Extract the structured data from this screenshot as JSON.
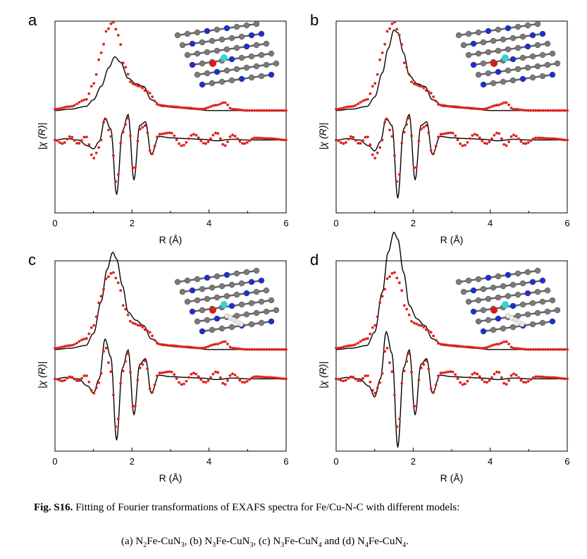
{
  "figure": {
    "caption_bold": "Fig. S16.",
    "caption_text": " Fitting of Fourier transformations of EXAFS spectra for Fe/Cu-N-C with different models:",
    "caption_line2": [
      {
        "t": "(a) N"
      },
      {
        "s": "2"
      },
      {
        "t": "Fe-CuN"
      },
      {
        "s": "3"
      },
      {
        "t": ", (b) N"
      },
      {
        "s": "3"
      },
      {
        "t": "Fe-CuN"
      },
      {
        "s": "3"
      },
      {
        "t": ", (c) N"
      },
      {
        "s": "3"
      },
      {
        "t": "Fe-CuN"
      },
      {
        "s": "4"
      },
      {
        "t": " and (d) N"
      },
      {
        "s": "4"
      },
      {
        "t": "Fe-CuN"
      },
      {
        "s": "4"
      },
      {
        "t": "."
      }
    ]
  },
  "colors": {
    "fit": "#000000",
    "data": "#e0201c",
    "atom_c": "#7a7a7a",
    "atom_n": "#1c2fd6",
    "atom_fe": "#d61c1c",
    "atom_cu": "#33d6d6",
    "atom_h": "#e8e8e8"
  },
  "chart_data": [
    {
      "panel_label": "a",
      "type": "line",
      "xlabel": "R (Å)",
      "ylabel": "|χ (R)|",
      "xlim": [
        0,
        6
      ],
      "xticks": [
        "0",
        "2",
        "4",
        "6"
      ],
      "series": [
        {
          "role": "fit-magnitude",
          "x": [
            0,
            0.4,
            0.8,
            1.0,
            1.2,
            1.4,
            1.55,
            1.7,
            1.9,
            2.1,
            2.3,
            2.5,
            2.8,
            3.2,
            3.6,
            4.0,
            4.4,
            5.0,
            6.0
          ],
          "y": [
            0.02,
            0.03,
            0.05,
            0.1,
            0.2,
            0.34,
            0.42,
            0.38,
            0.26,
            0.22,
            0.2,
            0.1,
            0.05,
            0.04,
            0.03,
            0.02,
            0.02,
            0.02,
            0.02
          ]
        },
        {
          "role": "data-magnitude",
          "x": [
            0,
            0.4,
            0.8,
            1.0,
            1.2,
            1.35,
            1.5,
            1.65,
            1.8,
            2.0,
            2.2,
            2.4,
            2.7,
            3.0,
            3.4,
            3.8,
            4.2,
            4.4,
            4.6,
            5.0,
            6.0
          ],
          "y": [
            0.03,
            0.05,
            0.1,
            0.22,
            0.45,
            0.62,
            0.68,
            0.58,
            0.35,
            0.22,
            0.2,
            0.16,
            0.06,
            0.05,
            0.04,
            0.03,
            0.06,
            0.08,
            0.03,
            0.02,
            0.02
          ]
        },
        {
          "role": "fit-real",
          "x": [
            0,
            0.3,
            0.6,
            0.85,
            1.0,
            1.15,
            1.3,
            1.45,
            1.6,
            1.75,
            1.9,
            2.05,
            2.2,
            2.35,
            2.5,
            2.7,
            3.0,
            3.4,
            3.8,
            4.2,
            4.6,
            5.0,
            5.5,
            6.0
          ],
          "y": [
            0,
            0.02,
            0.0,
            -0.08,
            -0.12,
            -0.02,
            0.3,
            0.15,
            -0.75,
            0.12,
            0.35,
            -0.55,
            0.2,
            0.25,
            -0.2,
            0.05,
            0.03,
            0.02,
            0.01,
            -0.01,
            0.01,
            0,
            0,
            0
          ]
        },
        {
          "role": "data-real",
          "x": [
            0,
            0.2,
            0.4,
            0.6,
            0.8,
            1.0,
            1.15,
            1.3,
            1.45,
            1.6,
            1.75,
            1.9,
            2.05,
            2.2,
            2.35,
            2.5,
            2.7,
            3.0,
            3.3,
            3.6,
            3.9,
            4.2,
            4.4,
            4.6,
            4.9,
            5.2,
            5.6,
            6.0
          ],
          "y": [
            0,
            -0.05,
            0.05,
            -0.05,
            0.05,
            -0.25,
            -0.1,
            0.3,
            0.05,
            -0.6,
            0.1,
            0.3,
            -0.45,
            0.15,
            0.2,
            -0.2,
            0.08,
            0.1,
            -0.08,
            0.08,
            -0.05,
            0.1,
            -0.08,
            0.07,
            -0.05,
            0.03,
            0.02,
            0
          ]
        }
      ]
    },
    {
      "panel_label": "b",
      "type": "line",
      "xlabel": "R (Å)",
      "ylabel": "|χ (R)|",
      "xlim": [
        0,
        6
      ],
      "xticks": [
        "0",
        "2",
        "4",
        "6"
      ],
      "series": [
        {
          "role": "fit-magnitude",
          "x": [
            0,
            0.4,
            0.8,
            1.0,
            1.2,
            1.35,
            1.5,
            1.6,
            1.75,
            1.9,
            2.1,
            2.3,
            2.5,
            2.8,
            3.2,
            3.6,
            4.0,
            4.4,
            5.0,
            6.0
          ],
          "y": [
            0.02,
            0.03,
            0.05,
            0.12,
            0.3,
            0.48,
            0.62,
            0.6,
            0.45,
            0.28,
            0.22,
            0.2,
            0.1,
            0.05,
            0.04,
            0.03,
            0.02,
            0.02,
            0.02,
            0.02
          ]
        },
        {
          "role": "data-magnitude",
          "x": [
            0,
            0.4,
            0.8,
            1.0,
            1.2,
            1.35,
            1.5,
            1.65,
            1.8,
            2.0,
            2.2,
            2.4,
            2.7,
            3.0,
            3.4,
            3.8,
            4.2,
            4.4,
            4.6,
            5.0,
            6.0
          ],
          "y": [
            0.03,
            0.05,
            0.1,
            0.22,
            0.45,
            0.62,
            0.68,
            0.58,
            0.35,
            0.22,
            0.2,
            0.16,
            0.06,
            0.05,
            0.04,
            0.03,
            0.06,
            0.08,
            0.03,
            0.02,
            0.02
          ]
        },
        {
          "role": "fit-real",
          "x": [
            0,
            0.3,
            0.6,
            0.85,
            1.0,
            1.15,
            1.3,
            1.45,
            1.6,
            1.75,
            1.9,
            2.05,
            2.2,
            2.35,
            2.5,
            2.7,
            3.0,
            3.4,
            3.8,
            4.2,
            4.6,
            5.0,
            5.5,
            6.0
          ],
          "y": [
            0,
            0.02,
            0.0,
            -0.08,
            -0.15,
            -0.02,
            0.3,
            0.2,
            -0.8,
            0.15,
            0.35,
            -0.55,
            0.2,
            0.25,
            -0.2,
            0.05,
            0.03,
            0.02,
            0.01,
            -0.01,
            0.01,
            0,
            0,
            0
          ]
        },
        {
          "role": "data-real",
          "x": [
            0,
            0.2,
            0.4,
            0.6,
            0.8,
            1.0,
            1.15,
            1.3,
            1.45,
            1.6,
            1.75,
            1.9,
            2.05,
            2.2,
            2.35,
            2.5,
            2.7,
            3.0,
            3.3,
            3.6,
            3.9,
            4.2,
            4.4,
            4.6,
            4.9,
            5.2,
            5.6,
            6.0
          ],
          "y": [
            0,
            -0.05,
            0.05,
            -0.05,
            0.05,
            -0.25,
            -0.1,
            0.3,
            0.05,
            -0.6,
            0.1,
            0.3,
            -0.45,
            0.15,
            0.2,
            -0.2,
            0.08,
            0.1,
            -0.08,
            0.08,
            -0.05,
            0.1,
            -0.08,
            0.07,
            -0.05,
            0.03,
            0.02,
            0
          ]
        }
      ]
    },
    {
      "panel_label": "c",
      "type": "line",
      "xlabel": "R (Å)",
      "ylabel": "|χ (R)|",
      "xlim": [
        0,
        6
      ],
      "xticks": [
        "0",
        "2",
        "4",
        "6"
      ],
      "series": [
        {
          "role": "fit-magnitude",
          "x": [
            0,
            0.4,
            0.8,
            1.0,
            1.2,
            1.35,
            1.5,
            1.6,
            1.75,
            1.9,
            2.1,
            2.3,
            2.5,
            2.8,
            3.2,
            3.6,
            4.0,
            4.4,
            5.0,
            6.0
          ],
          "y": [
            0.02,
            0.03,
            0.05,
            0.14,
            0.38,
            0.62,
            0.75,
            0.7,
            0.5,
            0.3,
            0.24,
            0.2,
            0.1,
            0.05,
            0.04,
            0.03,
            0.02,
            0.02,
            0.02,
            0.02
          ]
        },
        {
          "role": "data-magnitude",
          "x": [
            0,
            0.4,
            0.8,
            1.0,
            1.2,
            1.35,
            1.5,
            1.65,
            1.8,
            2.0,
            2.2,
            2.4,
            2.7,
            3.0,
            3.4,
            3.8,
            4.2,
            4.4,
            4.6,
            5.0,
            6.0
          ],
          "y": [
            0.03,
            0.05,
            0.1,
            0.2,
            0.42,
            0.56,
            0.6,
            0.52,
            0.33,
            0.22,
            0.2,
            0.16,
            0.06,
            0.05,
            0.04,
            0.03,
            0.06,
            0.08,
            0.03,
            0.02,
            0.02
          ]
        },
        {
          "role": "fit-real",
          "x": [
            0,
            0.3,
            0.6,
            0.85,
            1.0,
            1.15,
            1.3,
            1.45,
            1.6,
            1.75,
            1.9,
            2.05,
            2.2,
            2.35,
            2.5,
            2.7,
            3.0,
            3.4,
            3.8,
            4.2,
            4.6,
            5.0,
            5.5,
            6.0
          ],
          "y": [
            0,
            0.02,
            0.0,
            -0.1,
            -0.2,
            0.0,
            0.55,
            0.3,
            -0.85,
            0.15,
            0.4,
            -0.5,
            0.2,
            0.28,
            -0.2,
            0.05,
            0.03,
            0.02,
            0.01,
            -0.01,
            0.01,
            0,
            0,
            0
          ]
        },
        {
          "role": "data-real",
          "x": [
            0,
            0.2,
            0.4,
            0.6,
            0.8,
            1.0,
            1.15,
            1.3,
            1.45,
            1.6,
            1.75,
            1.9,
            2.05,
            2.2,
            2.35,
            2.5,
            2.7,
            3.0,
            3.3,
            3.6,
            3.9,
            4.2,
            4.4,
            4.6,
            4.9,
            5.2,
            5.6,
            6.0
          ],
          "y": [
            0,
            -0.03,
            0.03,
            -0.03,
            0.05,
            -0.2,
            -0.05,
            0.45,
            0.1,
            -0.7,
            0.1,
            0.35,
            -0.45,
            0.15,
            0.25,
            -0.2,
            0.08,
            0.1,
            -0.08,
            0.08,
            -0.05,
            0.1,
            -0.08,
            0.07,
            -0.05,
            0.03,
            0.02,
            0
          ]
        }
      ]
    },
    {
      "panel_label": "d",
      "type": "line",
      "xlabel": "R (Å)",
      "ylabel": "|χ (R)|",
      "xlim": [
        0,
        6
      ],
      "xticks": [
        "0",
        "2",
        "4",
        "6"
      ],
      "series": [
        {
          "role": "fit-magnitude",
          "x": [
            0,
            0.4,
            0.8,
            1.0,
            1.2,
            1.35,
            1.5,
            1.6,
            1.75,
            1.9,
            2.1,
            2.3,
            2.5,
            2.8,
            3.2,
            3.6,
            4.0,
            4.4,
            5.0,
            6.0
          ],
          "y": [
            0.02,
            0.03,
            0.05,
            0.15,
            0.45,
            0.75,
            0.9,
            0.85,
            0.6,
            0.35,
            0.25,
            0.2,
            0.1,
            0.05,
            0.04,
            0.03,
            0.02,
            0.02,
            0.02,
            0.02
          ]
        },
        {
          "role": "data-magnitude",
          "x": [
            0,
            0.4,
            0.8,
            1.0,
            1.2,
            1.35,
            1.5,
            1.65,
            1.8,
            2.0,
            2.2,
            2.4,
            2.7,
            3.0,
            3.4,
            3.8,
            4.2,
            4.4,
            4.6,
            5.0,
            6.0
          ],
          "y": [
            0.03,
            0.05,
            0.1,
            0.2,
            0.42,
            0.56,
            0.6,
            0.52,
            0.33,
            0.22,
            0.2,
            0.16,
            0.06,
            0.05,
            0.04,
            0.03,
            0.06,
            0.08,
            0.03,
            0.02,
            0.02
          ]
        },
        {
          "role": "fit-real",
          "x": [
            0,
            0.3,
            0.6,
            0.85,
            1.0,
            1.15,
            1.3,
            1.45,
            1.6,
            1.75,
            1.9,
            2.05,
            2.2,
            2.35,
            2.5,
            2.7,
            3.0,
            3.4,
            3.8,
            4.2,
            4.6,
            5.0,
            5.5,
            6.0
          ],
          "y": [
            0,
            0.02,
            0.0,
            -0.1,
            -0.25,
            0.0,
            0.65,
            0.35,
            -0.95,
            0.15,
            0.4,
            -0.5,
            0.2,
            0.28,
            -0.2,
            0.05,
            0.03,
            0.02,
            0.01,
            -0.01,
            0.01,
            0,
            0,
            0
          ]
        },
        {
          "role": "data-real",
          "x": [
            0,
            0.2,
            0.4,
            0.6,
            0.8,
            1.0,
            1.15,
            1.3,
            1.45,
            1.6,
            1.75,
            1.9,
            2.05,
            2.2,
            2.35,
            2.5,
            2.7,
            3.0,
            3.3,
            3.6,
            3.9,
            4.2,
            4.4,
            4.6,
            4.9,
            5.2,
            5.6,
            6.0
          ],
          "y": [
            0,
            -0.03,
            0.03,
            -0.03,
            0.05,
            -0.2,
            -0.05,
            0.45,
            0.1,
            -0.7,
            0.1,
            0.35,
            -0.45,
            0.15,
            0.25,
            -0.2,
            0.08,
            0.1,
            -0.08,
            0.08,
            -0.05,
            0.1,
            -0.08,
            0.07,
            -0.05,
            0.03,
            0.02,
            0
          ]
        }
      ]
    }
  ]
}
